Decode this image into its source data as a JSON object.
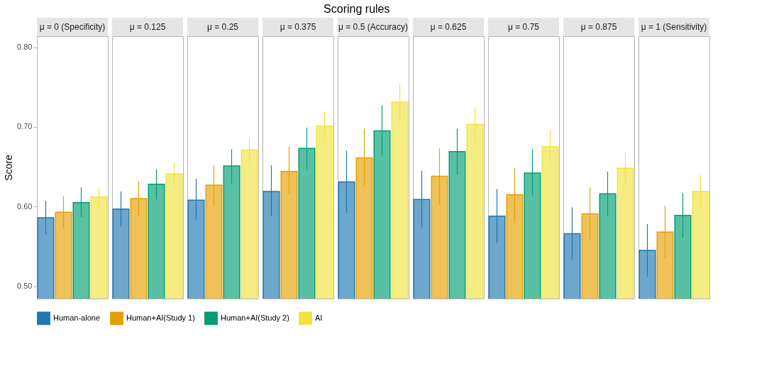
{
  "chart_data": {
    "type": "bar",
    "title": "Scoring rules",
    "ylabel": "Score",
    "categories": [
      "μ = 0 (Specificity)",
      "μ = 0.125",
      "μ = 0.25",
      "μ = 0.375",
      "μ = 0.5 (Accuracy)",
      "μ = 0.625",
      "μ = 0.75",
      "μ = 0.875",
      "μ = 1 (Sensitivity)"
    ],
    "series": [
      {
        "name": "Human-alone",
        "color": "#1f78b4",
        "values": [
          0.586,
          0.597,
          0.608,
          0.619,
          0.631,
          0.609,
          0.588,
          0.566,
          0.545
        ],
        "errors": [
          [
            0.565,
            0.607
          ],
          [
            0.575,
            0.619
          ],
          [
            0.583,
            0.635
          ],
          [
            0.588,
            0.652
          ],
          [
            0.592,
            0.67
          ],
          [
            0.574,
            0.645
          ],
          [
            0.554,
            0.622
          ],
          [
            0.533,
            0.599
          ],
          [
            0.512,
            0.578
          ]
        ]
      },
      {
        "name": "Human+AI(Study 1)",
        "color": "#e69f00",
        "values": [
          0.593,
          0.61,
          0.627,
          0.644,
          0.661,
          0.638,
          0.615,
          0.591,
          0.568
        ],
        "errors": [
          [
            0.572,
            0.613
          ],
          [
            0.588,
            0.632
          ],
          [
            0.601,
            0.652
          ],
          [
            0.616,
            0.675
          ],
          [
            0.625,
            0.698
          ],
          [
            0.602,
            0.673
          ],
          [
            0.58,
            0.648
          ],
          [
            0.558,
            0.624
          ],
          [
            0.535,
            0.601
          ]
        ]
      },
      {
        "name": "Human+AI(Study 2)",
        "color": "#009e73",
        "values": [
          0.605,
          0.628,
          0.651,
          0.673,
          0.695,
          0.669,
          0.642,
          0.616,
          0.589
        ],
        "errors": [
          [
            0.587,
            0.624
          ],
          [
            0.609,
            0.647
          ],
          [
            0.629,
            0.672
          ],
          [
            0.647,
            0.699
          ],
          [
            0.664,
            0.727
          ],
          [
            0.64,
            0.698
          ],
          [
            0.614,
            0.672
          ],
          [
            0.588,
            0.644
          ],
          [
            0.561,
            0.617
          ]
        ]
      },
      {
        "name": "AI",
        "color": "#f0e442",
        "values": [
          0.612,
          0.641,
          0.671,
          0.701,
          0.731,
          0.703,
          0.675,
          0.648,
          0.619
        ],
        "errors": [
          [
            0.598,
            0.624
          ],
          [
            0.627,
            0.655
          ],
          [
            0.656,
            0.686
          ],
          [
            0.682,
            0.719
          ],
          [
            0.707,
            0.754
          ],
          [
            0.682,
            0.725
          ],
          [
            0.654,
            0.696
          ],
          [
            0.628,
            0.668
          ],
          [
            0.598,
            0.64
          ]
        ]
      }
    ],
    "ylim": [
      0.4846,
      0.8138
    ],
    "yticks": [
      {
        "value": 0.5,
        "label": "0.50"
      },
      {
        "value": 0.6,
        "label": "0.60"
      },
      {
        "value": 0.7,
        "label": "0.70"
      },
      {
        "value": 0.8,
        "label": "0.80"
      }
    ],
    "grid": false,
    "legend": "bottom"
  }
}
